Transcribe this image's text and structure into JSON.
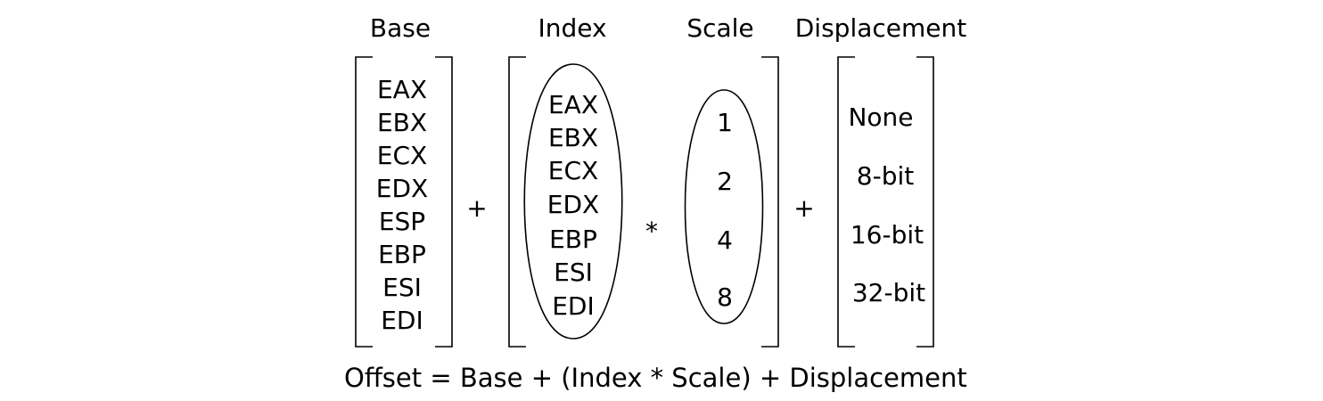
{
  "headers": {
    "base": "Base",
    "index": "Index",
    "scale": "Scale",
    "displacement": "Displacement"
  },
  "base_registers": [
    "EAX",
    "EBX",
    "ECX",
    "EDX",
    "ESP",
    "EBP",
    "ESI",
    "EDI"
  ],
  "index_registers": [
    "EAX",
    "EBX",
    "ECX",
    "EDX",
    "EBP",
    "ESI",
    "EDI"
  ],
  "scale_values": [
    "1",
    "2",
    "4",
    "8"
  ],
  "displacement_values": [
    "None",
    "8-bit",
    "16-bit",
    "32-bit"
  ],
  "operators": {
    "plus_1": "+",
    "times": "*",
    "plus_2": "+"
  },
  "formula": "Offset = Base + (Index * Scale) + Displacement"
}
